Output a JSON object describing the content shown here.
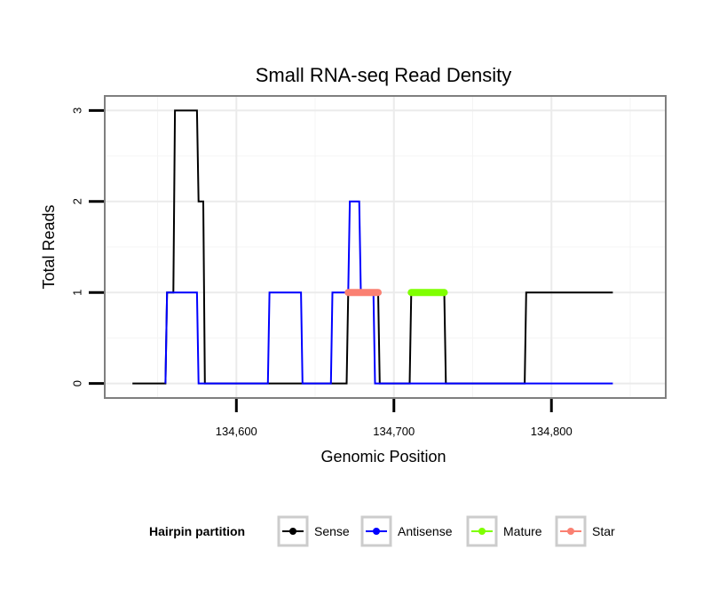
{
  "chart_data": {
    "type": "line",
    "title": "Small RNA-seq Read Density",
    "xlabel": "Genomic Position",
    "ylabel": "Total Reads",
    "xlim": [
      134517,
      134872
    ],
    "ylim": [
      -0.15,
      3.15
    ],
    "xticks": [
      134600,
      134700,
      134800
    ],
    "xtick_labels": [
      "134,600",
      "134,700",
      "134,800"
    ],
    "yticks": [
      0,
      1,
      2,
      3
    ],
    "ytick_labels": [
      "0",
      "1",
      "2",
      "3"
    ],
    "grid": true,
    "legend": {
      "title": "Hairpin partition",
      "position": "bottom",
      "entries": [
        {
          "name": "Sense",
          "color": "#000000"
        },
        {
          "name": "Antisense",
          "color": "#0000ff"
        },
        {
          "name": "Mature",
          "color": "#7fff00"
        },
        {
          "name": "Star",
          "color": "#fa8072"
        }
      ]
    },
    "series": [
      {
        "name": "Sense",
        "color": "#000000",
        "stroke_width": 2,
        "x": [
          134534,
          134555,
          134556,
          134560,
          134561,
          134575,
          134576,
          134579,
          134580,
          134583,
          134584,
          134670,
          134671,
          134690,
          134691,
          134710,
          134711,
          134732,
          134733,
          134783,
          134784,
          134839
        ],
        "y": [
          0,
          0,
          1,
          1,
          3,
          3,
          2,
          2,
          0,
          0,
          0,
          0,
          1,
          1,
          0,
          0,
          1,
          1,
          0,
          0,
          1,
          1
        ]
      },
      {
        "name": "Antisense",
        "color": "#0000ff",
        "stroke_width": 2,
        "x": [
          134555,
          134556,
          134575,
          134576,
          134620,
          134621,
          134641,
          134642,
          134660,
          134661,
          134671,
          134672,
          134678,
          134679,
          134687,
          134688,
          134695,
          134696,
          134839
        ],
        "y": [
          0,
          1,
          1,
          0,
          0,
          1,
          1,
          0,
          0,
          1,
          1,
          2,
          2,
          1,
          1,
          0,
          0,
          0,
          0
        ]
      },
      {
        "name": "Star",
        "color": "#fa8072",
        "stroke_width": 8,
        "x": [
          134671,
          134690
        ],
        "y": [
          1,
          1
        ]
      },
      {
        "name": "Mature",
        "color": "#7fff00",
        "stroke_width": 8,
        "x": [
          134711,
          134732
        ],
        "y": [
          1,
          1
        ]
      }
    ]
  }
}
